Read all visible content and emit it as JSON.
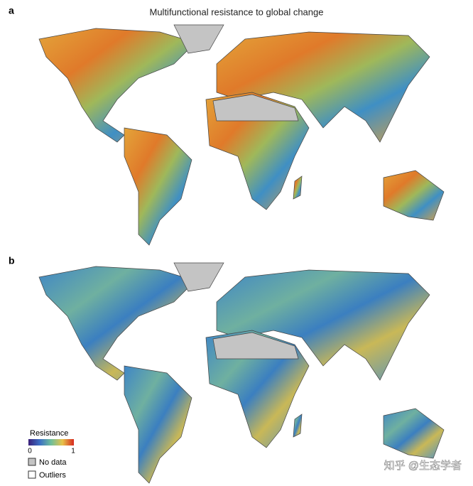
{
  "panels": [
    {
      "label": "a",
      "title": "Multifunctional resistance to global change"
    },
    {
      "label": "b"
    }
  ],
  "legend": {
    "title": "Resistance",
    "min": "0",
    "max": "1",
    "items": [
      "No data",
      "Outliers"
    ]
  },
  "watermark": "知乎 @生态学者"
}
